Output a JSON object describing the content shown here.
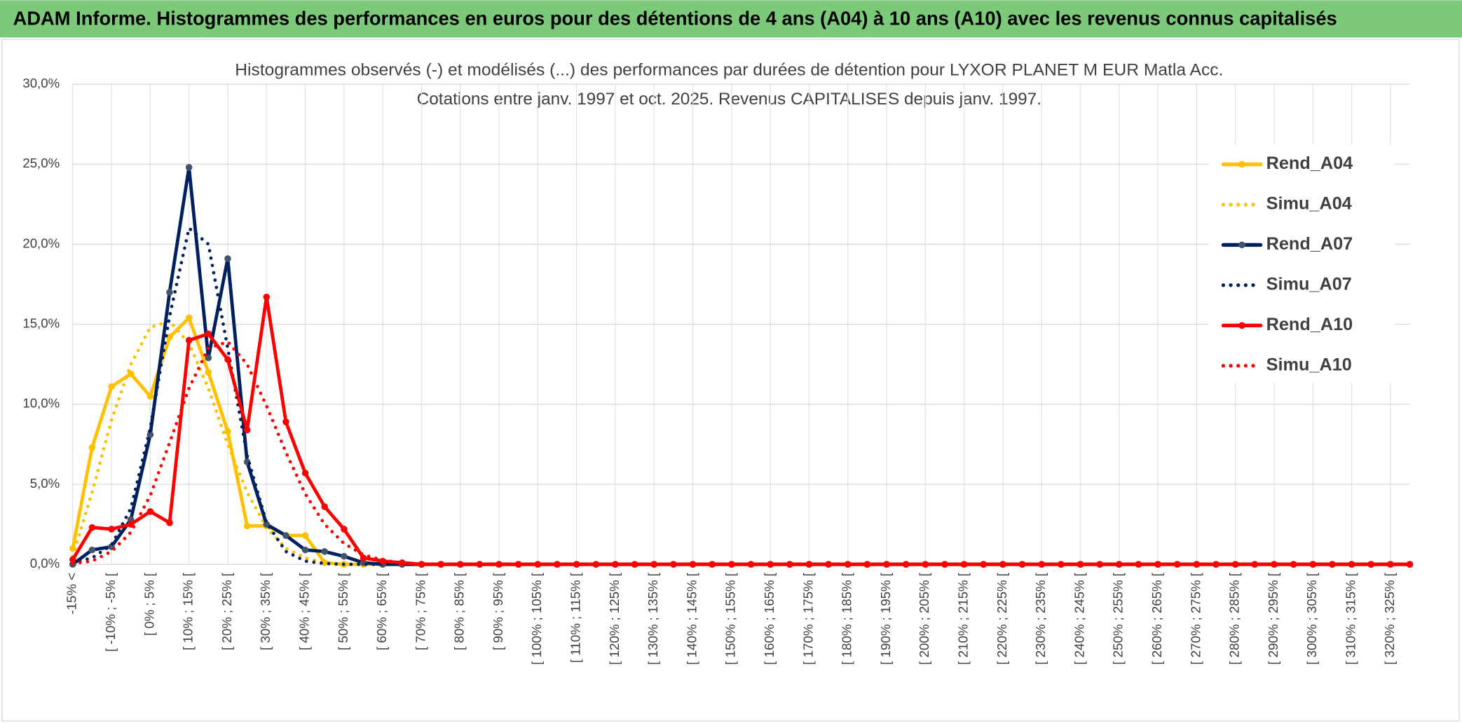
{
  "header": {
    "title": "ADAM Informe. Histogrammes des performances en euros pour des détentions de 4 ans (A04) à 10 ans (A10) avec les revenus connus capitalisés"
  },
  "chart_data": {
    "type": "line",
    "title": "Histogrammes observés (-) et modélisés (...) des performances par durées de détention pour LYXOR PLANET M EUR Matla Acc.",
    "subtitle": "Cotations entre janv. 1997 et oct. 2025. Revenus CAPITALISES depuis janv. 1997.",
    "categories": [
      "-15% <",
      null,
      "[ -10% ; -5% [",
      null,
      "[ 0% ; 5% [",
      null,
      "[ 10% ; 15% [",
      null,
      "[ 20% ; 25% [",
      null,
      "[ 30% ; 35% [",
      null,
      "[ 40% ; 45% [",
      null,
      "[ 50% ; 55% [",
      null,
      "[ 60% ; 65% [",
      null,
      "[ 70% ; 75% [",
      null,
      "[ 80% ; 85% [",
      null,
      "[ 90% ; 95% [",
      null,
      "[ 100% ; 105% [",
      null,
      "[ 110% ; 115% [",
      null,
      "[ 120% ; 125% [",
      null,
      "[ 130% ; 135% [",
      null,
      "[ 140% ; 145% [",
      null,
      "[ 150% ; 155% [",
      null,
      "[ 160% ; 165% [",
      null,
      "[ 170% ; 175% [",
      null,
      "[ 180% ; 185% [",
      null,
      "[ 190% ; 195% [",
      null,
      "[ 200% ; 205% [",
      null,
      "[ 210% ; 215% [",
      null,
      "[ 220% ; 225% [",
      null,
      "[ 230% ; 235% [",
      null,
      "[ 240% ; 245% [",
      null,
      "[ 250% ; 255% [",
      null,
      "[ 260% ; 265% [",
      null,
      "[ 270% ; 275% [",
      null,
      "[ 280% ; 285% [",
      null,
      "[ 290% ; 295% [",
      null,
      "[ 300% ; 305% [",
      null,
      "[ 310% ; 315% [",
      null,
      "[ 320% ; 325% [",
      null
    ],
    "series": [
      {
        "name": "Rend_A04",
        "color": "#ffc000",
        "style": "solid",
        "marker": true,
        "marker_color": "#ffc000",
        "values": [
          1,
          7.3,
          11.1,
          11.9,
          10.5,
          14.2,
          15.4,
          12,
          8.3,
          2.4,
          2.4,
          1.8,
          1.8,
          0.1,
          0,
          0,
          0,
          0,
          0,
          0,
          0,
          0,
          0,
          0,
          0,
          0,
          0,
          0,
          0,
          0,
          0,
          0,
          0,
          0,
          0,
          0,
          0,
          0,
          0,
          0,
          0,
          0,
          0,
          0,
          0,
          0,
          0,
          0,
          0,
          0,
          0,
          0,
          0,
          0,
          0,
          0,
          0,
          0,
          0,
          0,
          0,
          0,
          0,
          0,
          0,
          0,
          0,
          0,
          0,
          0
        ]
      },
      {
        "name": "Simu_A04",
        "color": "#ffc000",
        "style": "dotted",
        "marker": false,
        "values": [
          0.5,
          4.5,
          9,
          12.5,
          14.8,
          15.2,
          13.8,
          11,
          7.5,
          4.5,
          2.3,
          1,
          0.4,
          0.1,
          0,
          0,
          0,
          0,
          0,
          0,
          0,
          0,
          0,
          0,
          0,
          0,
          0,
          0,
          0,
          0,
          0,
          0,
          0,
          0,
          0,
          0,
          0,
          0,
          0,
          0,
          0,
          0,
          0,
          0,
          0,
          0,
          0,
          0,
          0,
          0,
          0,
          0,
          0,
          0,
          0,
          0,
          0,
          0,
          0,
          0,
          0,
          0,
          0,
          0,
          0,
          0,
          0,
          0,
          0,
          0
        ]
      },
      {
        "name": "Rend_A07",
        "color": "#002060",
        "style": "solid",
        "marker": true,
        "marker_color": "#44546a",
        "values": [
          0,
          0.9,
          1.1,
          2.8,
          8.1,
          17,
          24.8,
          12.9,
          19.1,
          6.4,
          2.5,
          1.8,
          0.9,
          0.8,
          0.5,
          0.1,
          0,
          0,
          0,
          0,
          0,
          0,
          0,
          0,
          0,
          0,
          0,
          0,
          0,
          0,
          0,
          0,
          0,
          0,
          0,
          0,
          0,
          0,
          0,
          0,
          0,
          0,
          0,
          0,
          0,
          0,
          0,
          0,
          0,
          0,
          0,
          0,
          0,
          0,
          0,
          0,
          0,
          0,
          0,
          0,
          0,
          0,
          0,
          0,
          0,
          0,
          0,
          0,
          0,
          0
        ]
      },
      {
        "name": "Simu_A07",
        "color": "#002060",
        "style": "dotted",
        "marker": false,
        "values": [
          0.1,
          0.4,
          1.2,
          3.5,
          8.5,
          15.5,
          21,
          20,
          13.5,
          6.8,
          2.6,
          0.8,
          0.2,
          0.05,
          0,
          0,
          0,
          0,
          0,
          0,
          0,
          0,
          0,
          0,
          0,
          0,
          0,
          0,
          0,
          0,
          0,
          0,
          0,
          0,
          0,
          0,
          0,
          0,
          0,
          0,
          0,
          0,
          0,
          0,
          0,
          0,
          0,
          0,
          0,
          0,
          0,
          0,
          0,
          0,
          0,
          0,
          0,
          0,
          0,
          0,
          0,
          0,
          0,
          0,
          0,
          0,
          0,
          0,
          0,
          0
        ]
      },
      {
        "name": "Rend_A10",
        "color": "#ff0000",
        "style": "solid",
        "marker": true,
        "marker_color": "#ff0000",
        "values": [
          0.3,
          2.3,
          2.2,
          2.5,
          3.3,
          2.6,
          14,
          14.4,
          12.8,
          8.4,
          16.7,
          8.9,
          5.7,
          3.6,
          2.2,
          0.4,
          0.2,
          0.1,
          0,
          0,
          0,
          0,
          0,
          0,
          0,
          0,
          0,
          0,
          0,
          0,
          0,
          0,
          0,
          0,
          0,
          0,
          0,
          0,
          0,
          0,
          0,
          0,
          0,
          0,
          0,
          0,
          0,
          0,
          0,
          0,
          0,
          0,
          0,
          0,
          0,
          0,
          0,
          0,
          0,
          0,
          0,
          0,
          0,
          0,
          0,
          0,
          0,
          0,
          0,
          0
        ]
      },
      {
        "name": "Simu_A10",
        "color": "#ff0000",
        "style": "dotted",
        "marker": false,
        "values": [
          0.05,
          0.2,
          0.8,
          2,
          4.3,
          7.6,
          11,
          13.5,
          13.9,
          12.5,
          9.9,
          7,
          4.4,
          2.5,
          1.3,
          0.6,
          0.25,
          0.1,
          0,
          0,
          0,
          0,
          0,
          0,
          0,
          0,
          0,
          0,
          0,
          0,
          0,
          0,
          0,
          0,
          0,
          0,
          0,
          0,
          0,
          0,
          0,
          0,
          0,
          0,
          0,
          0,
          0,
          0,
          0,
          0,
          0,
          0,
          0,
          0,
          0,
          0,
          0,
          0,
          0,
          0,
          0,
          0,
          0,
          0,
          0,
          0,
          0,
          0,
          0,
          0
        ]
      }
    ],
    "ylim": [
      0,
      30
    ],
    "yticks": [
      {
        "value": 0,
        "label": "0,0%"
      },
      {
        "value": 5,
        "label": "5,0%"
      },
      {
        "value": 10,
        "label": "10,0%"
      },
      {
        "value": 15,
        "label": "15,0%"
      },
      {
        "value": 20,
        "label": "20,0%"
      },
      {
        "value": 25,
        "label": "25,0%"
      },
      {
        "value": 30,
        "label": "30,0%"
      }
    ],
    "grid": true,
    "legend": "right"
  }
}
